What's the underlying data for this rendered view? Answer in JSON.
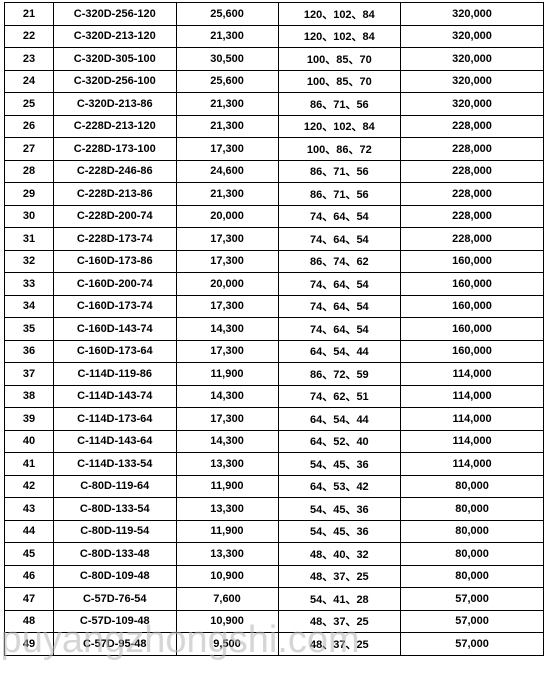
{
  "table": {
    "columns": [
      "no",
      "model",
      "val1",
      "dims",
      "val2"
    ],
    "col_widths": [
      "48px",
      "120px",
      "100px",
      "120px",
      "140px"
    ],
    "rows": [
      [
        "21",
        "C-320D-256-120",
        "25,600",
        "120、102、84",
        "320,000"
      ],
      [
        "22",
        "C-320D-213-120",
        "21,300",
        "120、102、84",
        "320,000"
      ],
      [
        "23",
        "C-320D-305-100",
        "30,500",
        "100、85、70",
        "320,000"
      ],
      [
        "24",
        "C-320D-256-100",
        "25,600",
        "100、85、70",
        "320,000"
      ],
      [
        "25",
        "C-320D-213-86",
        "21,300",
        "86、71、56",
        "320,000"
      ],
      [
        "26",
        "C-228D-213-120",
        "21,300",
        "120、102、84",
        "228,000"
      ],
      [
        "27",
        "C-228D-173-100",
        "17,300",
        "100、86、72",
        "228,000"
      ],
      [
        "28",
        "C-228D-246-86",
        "24,600",
        "86、71、56",
        "228,000"
      ],
      [
        "29",
        "C-228D-213-86",
        "21,300",
        "86、71、56",
        "228,000"
      ],
      [
        "30",
        "C-228D-200-74",
        "20,000",
        "74、64、54",
        "228,000"
      ],
      [
        "31",
        "C-228D-173-74",
        "17,300",
        "74、64、54",
        "228,000"
      ],
      [
        "32",
        "C-160D-173-86",
        "17,300",
        "86、74、62",
        "160,000"
      ],
      [
        "33",
        "C-160D-200-74",
        "20,000",
        "74、64、54",
        "160,000"
      ],
      [
        "34",
        "C-160D-173-74",
        "17,300",
        "74、64、54",
        "160,000"
      ],
      [
        "35",
        "C-160D-143-74",
        "14,300",
        "74、64、54",
        "160,000"
      ],
      [
        "36",
        "C-160D-173-64",
        "17,300",
        "64、54、44",
        "160,000"
      ],
      [
        "37",
        "C-114D-119-86",
        "11,900",
        "86、72、59",
        "114,000"
      ],
      [
        "38",
        "C-114D-143-74",
        "14,300",
        "74、62、51",
        "114,000"
      ],
      [
        "39",
        "C-114D-173-64",
        "17,300",
        "64、54、44",
        "114,000"
      ],
      [
        "40",
        "C-114D-143-64",
        "14,300",
        "64、52、40",
        "114,000"
      ],
      [
        "41",
        "C-114D-133-54",
        "13,300",
        "54、45、36",
        "114,000"
      ],
      [
        "42",
        "C-80D-119-64",
        "11,900",
        "64、53、42",
        "80,000"
      ],
      [
        "43",
        "C-80D-133-54",
        "13,300",
        "54、45、36",
        "80,000"
      ],
      [
        "44",
        "C-80D-119-54",
        "11,900",
        "54、45、36",
        "80,000"
      ],
      [
        "45",
        "C-80D-133-48",
        "13,300",
        "48、40、32",
        "80,000"
      ],
      [
        "46",
        "C-80D-109-48",
        "10,900",
        "48、37、25",
        "80,000"
      ],
      [
        "47",
        "C-57D-76-54",
        "7,600",
        "54、41、28",
        "57,000"
      ],
      [
        "48",
        "C-57D-109-48",
        "10,900",
        "48、37、25",
        "57,000"
      ],
      [
        "49",
        "C-57D-95-48",
        "9,500",
        "48、37、25",
        "57,000"
      ]
    ]
  },
  "watermark": ".puyangzhongshi.com",
  "style": {
    "font_size": 11,
    "font_weight": "bold",
    "border_color": "#000000",
    "background": "#ffffff",
    "watermark_color": "rgba(180,180,180,0.55)",
    "watermark_fontsize": 38
  }
}
